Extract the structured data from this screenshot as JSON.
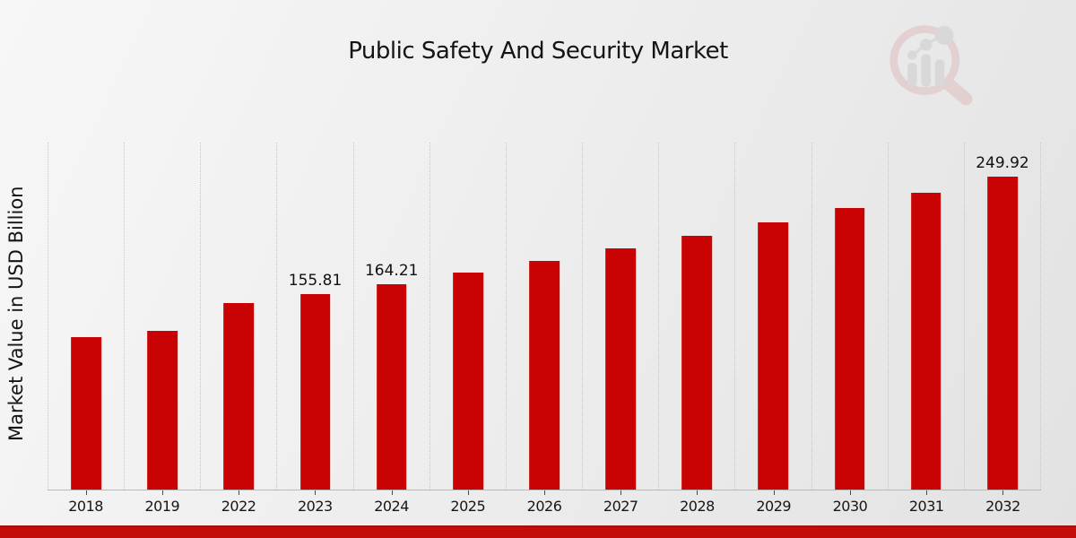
{
  "header": {
    "title": "Public Safety And Security Market"
  },
  "y_axis": {
    "label": "Market Value in USD Billion"
  },
  "logo": {
    "name": "market-research-magnifier-bar-chart-watermark"
  },
  "colors": {
    "bar": "#c90303",
    "bottom_band": "#c30d0d",
    "bottom_band_edge": "#9d1313",
    "gridline": "#c6c6c6",
    "title_text": "#141414",
    "logo_pink": "#dfb9b9",
    "logo_gray": "#c9c9c9"
  },
  "chart_data": {
    "type": "bar",
    "title": "Public Safety And Security Market",
    "xlabel": "",
    "ylabel": "Market Value in USD Billion",
    "ylim": [
      0,
      277
    ],
    "grid": "vertical dotted separators between year groups, no horizontal gridlines, no y tick labels",
    "legend_position": "none",
    "categories": [
      "2018",
      "2019",
      "2022",
      "2023",
      "2024",
      "2025",
      "2026",
      "2027",
      "2028",
      "2029",
      "2030",
      "2031",
      "2032"
    ],
    "values": [
      121.5,
      126.5,
      148.8,
      155.81,
      164.21,
      173.1,
      182.4,
      192.2,
      202.6,
      213.5,
      225.0,
      237.1,
      249.92
    ],
    "bars": [
      {
        "year": "2018",
        "value": 121.5,
        "label": ""
      },
      {
        "year": "2019",
        "value": 126.5,
        "label": ""
      },
      {
        "year": "2022",
        "value": 148.8,
        "label": ""
      },
      {
        "year": "2023",
        "value": 155.81,
        "label": "155.81"
      },
      {
        "year": "2024",
        "value": 164.21,
        "label": "164.21"
      },
      {
        "year": "2025",
        "value": 173.1,
        "label": ""
      },
      {
        "year": "2026",
        "value": 182.4,
        "label": ""
      },
      {
        "year": "2027",
        "value": 192.2,
        "label": ""
      },
      {
        "year": "2028",
        "value": 202.6,
        "label": ""
      },
      {
        "year": "2029",
        "value": 213.5,
        "label": ""
      },
      {
        "year": "2030",
        "value": 225.0,
        "label": ""
      },
      {
        "year": "2031",
        "value": 237.1,
        "label": ""
      },
      {
        "year": "2032",
        "value": 249.92,
        "label": "249.92"
      }
    ]
  }
}
